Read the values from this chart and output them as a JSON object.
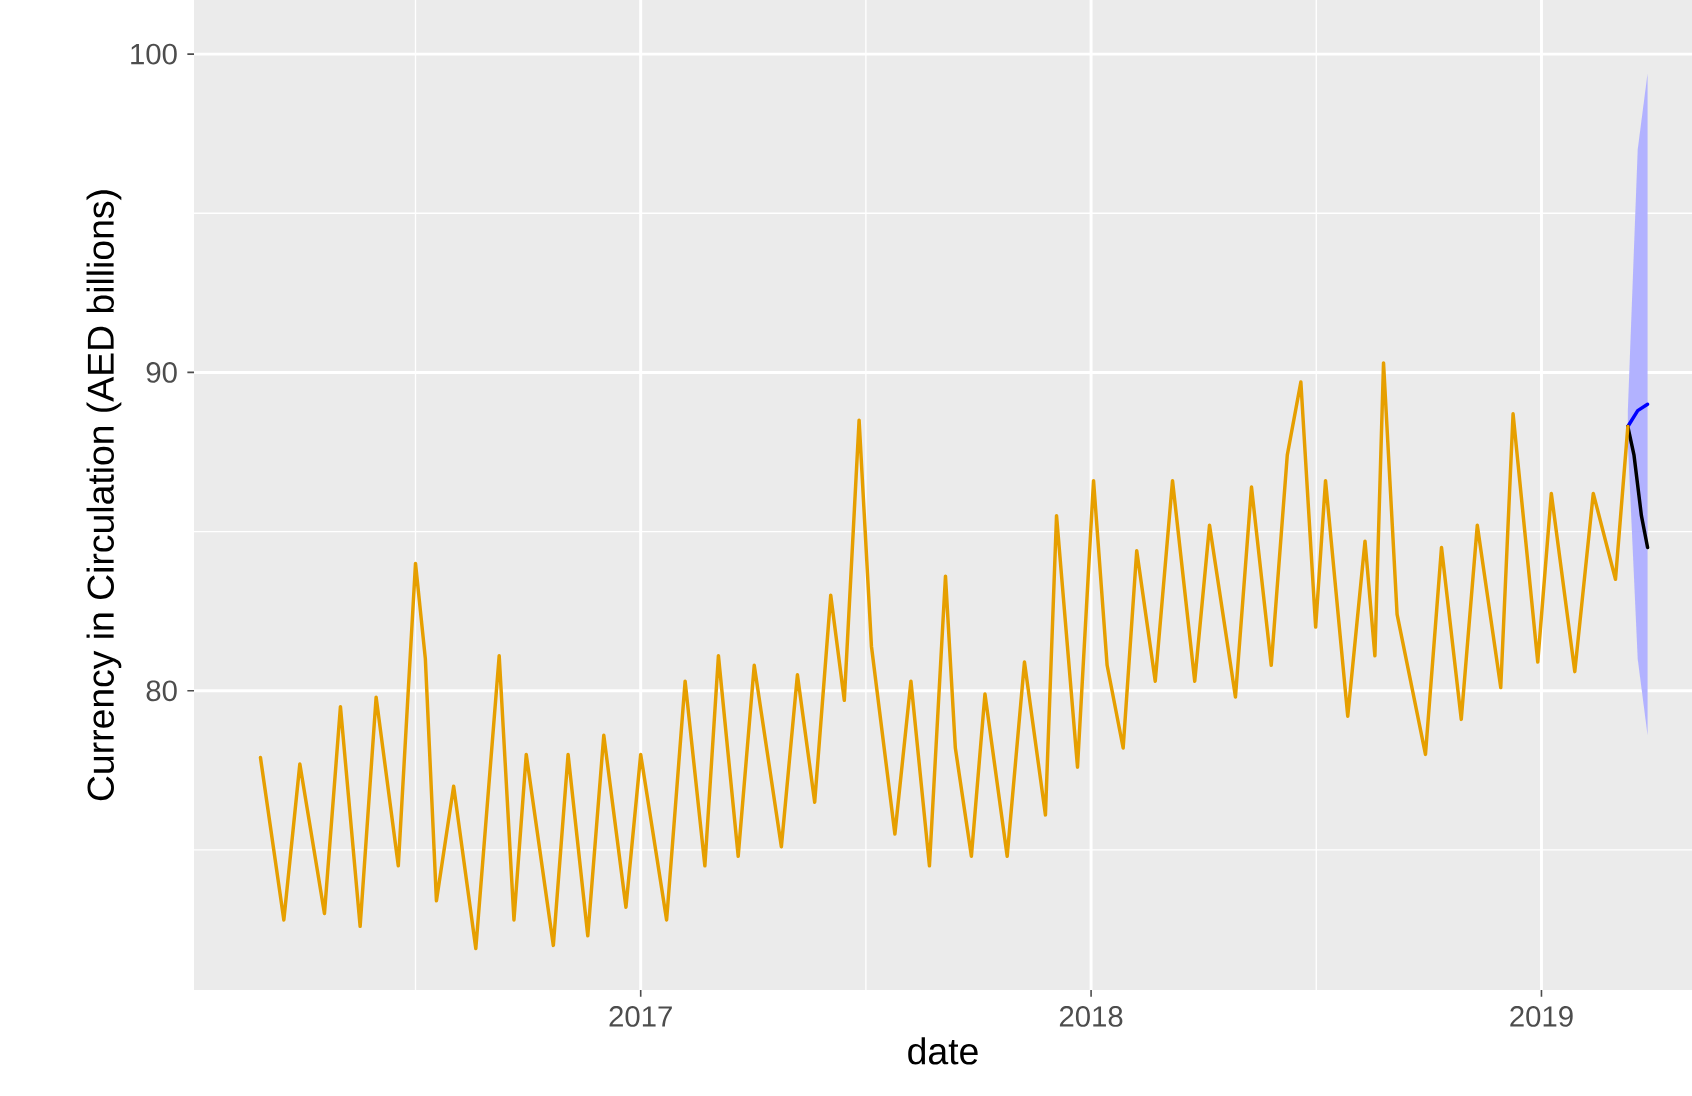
{
  "chart_data": {
    "type": "line",
    "xlabel": "date",
    "ylabel": "Currency in Circulation (AED billions)",
    "xlim": [
      "2016-01-04",
      "2019-05-03"
    ],
    "ylim": [
      70.6,
      101.7
    ],
    "xticks": [
      {
        "value": "2017-01-01",
        "label": "2017"
      },
      {
        "value": "2018-01-01",
        "label": "2018"
      },
      {
        "value": "2019-01-01",
        "label": "2019"
      }
    ],
    "yticks": [
      80,
      90,
      100
    ],
    "grid": true,
    "marker": "none",
    "line_style": "solid",
    "series": [
      {
        "color": "#0000ff",
        "x": [
          "2019-03-12",
          "2019-03-20",
          "2019-03-28"
        ],
        "values": [
          88.3,
          88.8,
          89.0
        ],
        "lower": [
          87.8,
          81,
          78.6
        ],
        "upper": [
          88.8,
          97,
          99.4
        ]
      },
      {
        "color": "#000000",
        "x": [
          "2019-03-12",
          "2019-03-17",
          "2019-03-23",
          "2019-03-28"
        ],
        "values": [
          88.3,
          87.4,
          85.5,
          84.5
        ]
      },
      {
        "color": "#e69f00",
        "x": [
          "2016-02-27",
          "2016-03-17",
          "2016-03-30",
          "2016-04-19",
          "2016-05-02",
          "2016-05-18",
          "2016-05-31",
          "2016-06-18",
          "2016-07-02",
          "2016-07-10",
          "2016-07-19",
          "2016-08-02",
          "2016-08-20",
          "2016-09-08",
          "2016-09-20",
          "2016-09-30",
          "2016-10-22",
          "2016-11-03",
          "2016-11-19",
          "2016-12-02",
          "2016-12-20",
          "2017-01-01",
          "2017-01-22",
          "2017-02-06",
          "2017-02-22",
          "2017-03-05",
          "2017-03-21",
          "2017-04-03",
          "2017-04-25",
          "2017-05-08",
          "2017-05-22",
          "2017-06-04",
          "2017-06-15",
          "2017-06-27",
          "2017-07-07",
          "2017-07-26",
          "2017-08-08",
          "2017-08-23",
          "2017-09-05",
          "2017-09-13",
          "2017-09-26",
          "2017-10-07",
          "2017-10-25",
          "2017-11-08",
          "2017-11-25",
          "2017-12-04",
          "2017-12-21",
          "2018-01-03",
          "2018-01-14",
          "2018-01-27",
          "2018-02-07",
          "2018-02-22",
          "2018-03-08",
          "2018-03-26",
          "2018-04-07",
          "2018-04-28",
          "2018-05-11",
          "2018-05-27",
          "2018-06-09",
          "2018-06-20",
          "2018-07-02",
          "2018-07-10",
          "2018-07-28",
          "2018-08-11",
          "2018-08-19",
          "2018-08-26",
          "2018-09-06",
          "2018-09-29",
          "2018-10-12",
          "2018-10-28",
          "2018-11-10",
          "2018-11-29",
          "2018-12-09",
          "2018-12-29",
          "2019-01-09",
          "2019-01-28",
          "2019-02-12",
          "2019-03-02",
          "2019-03-12"
        ],
        "values": [
          77.9,
          72.8,
          77.7,
          73.0,
          79.5,
          72.6,
          79.8,
          74.5,
          84.0,
          81.0,
          73.4,
          77.0,
          71.9,
          81.1,
          72.8,
          78.0,
          72.0,
          78.0,
          72.3,
          78.6,
          73.2,
          78.0,
          72.8,
          80.3,
          74.5,
          81.1,
          74.8,
          80.8,
          75.1,
          80.5,
          76.5,
          83.0,
          79.7,
          88.5,
          81.4,
          75.5,
          80.3,
          74.5,
          83.6,
          78.2,
          74.8,
          79.9,
          74.8,
          80.9,
          76.1,
          85.5,
          77.6,
          86.6,
          80.8,
          78.2,
          84.4,
          80.3,
          86.6,
          80.3,
          85.2,
          79.8,
          86.4,
          80.8,
          87.4,
          89.7,
          82.0,
          86.6,
          79.2,
          84.7,
          81.1,
          90.3,
          82.4,
          78.0,
          84.5,
          79.1,
          85.2,
          80.1,
          88.7,
          80.9,
          86.2,
          80.6,
          86.2,
          83.5,
          88.3
        ]
      }
    ]
  }
}
